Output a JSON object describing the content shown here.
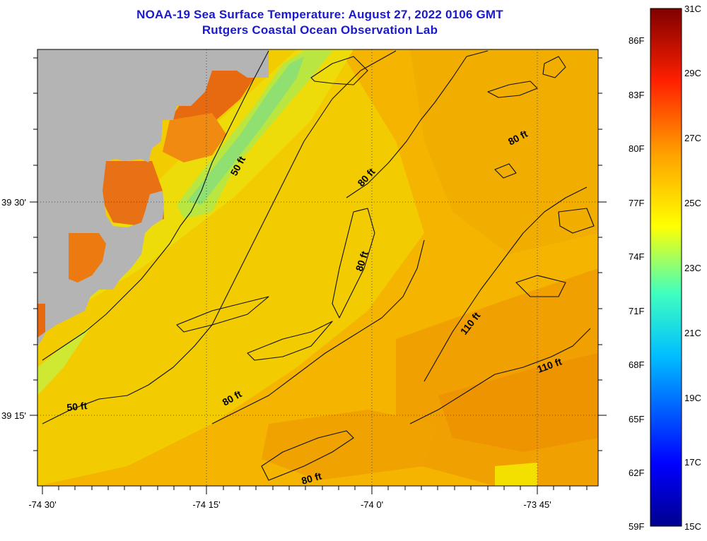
{
  "title": {
    "line1": "NOAA-19 Sea Surface Temperature:  August 27, 2022 0106 GMT",
    "line2": "Rutgers Coastal Ocean Observation Lab"
  },
  "axes": {
    "lon_ticks": [
      "-74 30'",
      "-74 15'",
      "-74 0'",
      "-73 45'"
    ],
    "lat_ticks": [
      "39 30'",
      "39 15'"
    ]
  },
  "contour_labels": [
    "50 ft",
    "50 ft",
    "80 ft",
    "80 ft",
    "80 ft",
    "80 ft",
    "110 ft",
    "110 ft"
  ],
  "colorbar": {
    "celsius": [
      "31C",
      "29C",
      "27C",
      "25C",
      "23C",
      "21C",
      "19C",
      "17C",
      "15C"
    ],
    "fahrenheit": [
      "86F",
      "83F",
      "80F",
      "77F",
      "74F",
      "71F",
      "68F",
      "65F",
      "62F",
      "59F"
    ]
  },
  "colors": {
    "land": "#b4b4b4",
    "title": "#1a1acc"
  }
}
